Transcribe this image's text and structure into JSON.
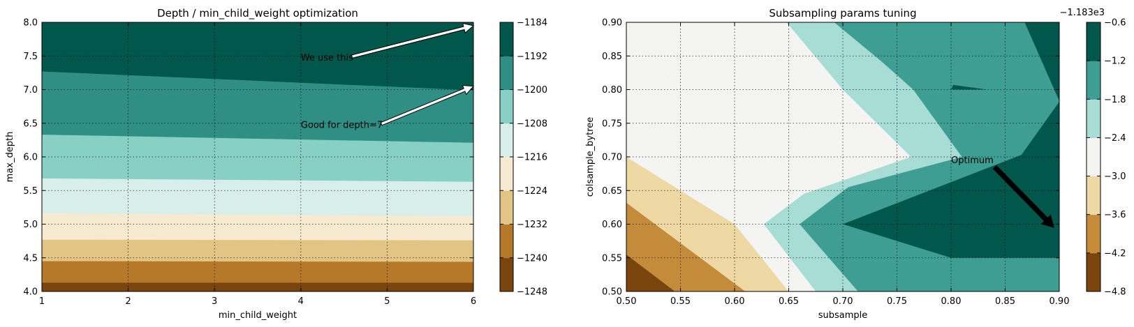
{
  "chart_data": [
    {
      "type": "contour",
      "title": "Depth / min_child_weight optimization",
      "xlabel": "min_child_weight",
      "ylabel": "max_depth",
      "xlim": [
        1,
        6
      ],
      "ylim": [
        4.0,
        8.0
      ],
      "xticks": [
        "1",
        "2",
        "3",
        "4",
        "5",
        "6"
      ],
      "yticks": [
        "4.0",
        "4.5",
        "5.0",
        "5.5",
        "6.0",
        "6.5",
        "7.0",
        "7.5",
        "8.0"
      ],
      "grid": true,
      "levels": [
        -1248,
        -1240,
        -1232,
        -1224,
        -1216,
        -1208,
        -1200,
        -1192,
        -1184
      ],
      "colorbar_ticks": [
        "−1248",
        "−1240",
        "−1232",
        "−1224",
        "−1216",
        "−1208",
        "−1200",
        "−1192",
        "−1184"
      ],
      "colors": [
        "#7a450c",
        "#b6792a",
        "#e2c584",
        "#f6ebd0",
        "#d8eeeb",
        "#87d0c3",
        "#2f8f85",
        "#02574c"
      ],
      "band_boundaries": [
        {
          "x": [
            1,
            6
          ],
          "y": [
            4.13,
            4.13
          ]
        },
        {
          "x": [
            1,
            6
          ],
          "y": [
            4.45,
            4.44
          ]
        },
        {
          "x": [
            1,
            6
          ],
          "y": [
            4.77,
            4.76
          ]
        },
        {
          "x": [
            1,
            6
          ],
          "y": [
            5.16,
            5.12
          ]
        },
        {
          "x": [
            1,
            6
          ],
          "y": [
            5.68,
            5.63
          ]
        },
        {
          "x": [
            1,
            6
          ],
          "y": [
            6.33,
            6.21
          ]
        },
        {
          "x": [
            1,
            6
          ],
          "y": [
            7.27,
            6.99
          ]
        }
      ],
      "annotations": [
        {
          "text": "We use this",
          "xy": [
            6.0,
            7.95
          ],
          "xytext": [
            4.0,
            7.47
          ],
          "color": "#ffffff"
        },
        {
          "text": "Good for depth=7",
          "xy": [
            6.0,
            7.05
          ],
          "xytext": [
            4.0,
            6.47
          ],
          "color": "#ffffff"
        }
      ]
    },
    {
      "type": "contour",
      "title": "Subsampling params tuning",
      "xlabel": "subsample",
      "ylabel": "colsample_bytree",
      "xlim": [
        0.5,
        0.9
      ],
      "ylim": [
        0.5,
        0.9
      ],
      "xticks": [
        "0.50",
        "0.55",
        "0.60",
        "0.65",
        "0.70",
        "0.75",
        "0.80",
        "0.85",
        "0.90"
      ],
      "yticks": [
        "0.50",
        "0.55",
        "0.60",
        "0.65",
        "0.70",
        "0.75",
        "0.80",
        "0.85",
        "0.90"
      ],
      "grid": true,
      "levels": [
        -4.8,
        -4.2,
        -3.6,
        -3.0,
        -2.4,
        -1.8,
        -1.2,
        -0.6
      ],
      "colorbar_ticks": [
        "−4.8",
        "−4.2",
        "−3.6",
        "−3.0",
        "−2.4",
        "−1.8",
        "−1.2",
        "−0.6"
      ],
      "colorbar_offset": "−1.183e3",
      "colors": [
        "#7a450c",
        "#c48b3b",
        "#eed8a3",
        "#f4f4f2",
        "#a7ddd4",
        "#3f9e93",
        "#02574c"
      ],
      "regions": [
        {
          "level": 0,
          "x": [
            0.5,
            0.5,
            0.545
          ],
          "y": [
            0.5,
            0.555,
            0.5
          ]
        },
        {
          "level": 1,
          "x": [
            0.5,
            0.5,
            0.61,
            0.545
          ],
          "y": [
            0.555,
            0.632,
            0.5,
            0.5
          ]
        },
        {
          "level": 2,
          "x": [
            0.5,
            0.5,
            0.6,
            0.65,
            0.61
          ],
          "y": [
            0.632,
            0.7,
            0.6,
            0.5,
            0.5
          ]
        },
        {
          "level": 2,
          "x": [
            0.5,
            0.5,
            0.547,
            0.5
          ],
          "y": [
            0.7,
            0.9,
            0.8,
            0.7
          ]
        },
        {
          "level": 2,
          "x": [
            0.69,
            0.7,
            0.706,
            0.69
          ],
          "y": [
            0.7,
            0.72,
            0.7,
            0.7
          ]
        },
        {
          "level": 3,
          "x": [
            0.5,
            0.5,
            0.547,
            0.5,
            0.5,
            0.5,
            0.6,
            0.65,
            0.675,
            0.627,
            0.664,
            0.763,
            0.7,
            0.648,
            0.6
          ],
          "y": [
            0.7,
            0.9,
            0.8,
            0.7,
            0.7,
            0.7,
            0.6,
            0.5,
            0.5,
            0.6,
            0.645,
            0.7,
            0.8,
            0.9,
            0.9
          ]
        },
        {
          "level": 4,
          "x": [
            0.648,
            0.7,
            0.763,
            0.664,
            0.627,
            0.675,
            0.714,
            0.66,
            0.705,
            0.81,
            0.765,
            0.737,
            0.692
          ],
          "y": [
            0.9,
            0.8,
            0.7,
            0.645,
            0.6,
            0.5,
            0.5,
            0.6,
            0.655,
            0.7,
            0.8,
            0.84,
            0.9
          ]
        },
        {
          "level": 5,
          "x": [
            0.692,
            0.737,
            0.765,
            0.81,
            0.705,
            0.66,
            0.714,
            0.9,
            0.9,
            0.9
          ],
          "y": [
            0.9,
            0.84,
            0.8,
            0.7,
            0.655,
            0.6,
            0.5,
            0.5,
            0.783,
            0.9
          ]
        },
        {
          "level": 6,
          "x": [
            0.72,
            0.9,
            0.9,
            0.868,
            0.836,
            0.753
          ],
          "y": [
            0.9,
            0.9,
            0.783,
            0.9,
            0.9,
            0.9
          ]
        },
        {
          "level": 6,
          "x": [
            0.8,
            0.82,
            0.9,
            0.9,
            0.865,
            0.7,
            0.7
          ],
          "y": [
            0.55,
            0.55,
            0.55,
            0.782,
            0.703,
            0.6,
            0.6
          ]
        },
        {
          "level": 6,
          "x": [
            0.8,
            0.833,
            0.802,
            0.8
          ],
          "y": [
            0.8,
            0.8,
            0.807,
            0.8
          ]
        }
      ],
      "annotations": [
        {
          "text": "Optimum",
          "xy": [
            0.895,
            0.595
          ],
          "xytext": [
            0.8,
            0.695
          ],
          "color": "#000000"
        }
      ]
    }
  ]
}
